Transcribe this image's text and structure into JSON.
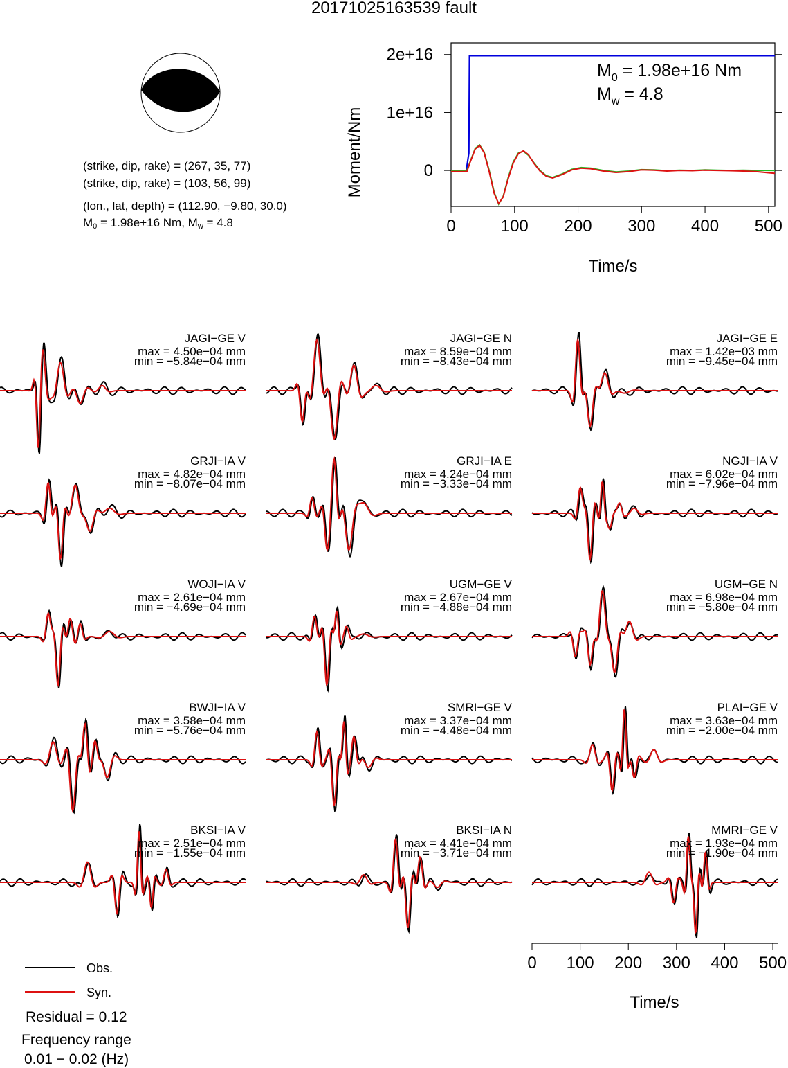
{
  "title": "20171025163539 fault",
  "mechanism": {
    "line1": "(strike, dip, rake) = (267, 35, 77)",
    "line2": "(strike, dip, rake) = (103, 56, 99)",
    "line3": "(lon., lat, depth) = (112.90, −9.80, 30.0)",
    "line4_m": "M",
    "line4_sub": "0",
    "line4_rest": " = 1.98e+16 Nm, M",
    "line4_sub2": "w",
    "line4_end": " = 4.8"
  },
  "chart_data": [
    {
      "type": "line",
      "name": "moment-function",
      "ylabel": "Moment/Nm",
      "xlabel": "Time/s",
      "xlim": [
        0,
        510
      ],
      "ylim": [
        -6200000000000000,
        22000000000000000
      ],
      "xticks": [
        "0",
        "100",
        "200",
        "300",
        "400",
        "500"
      ],
      "yticks": [
        "0",
        "1e+16",
        "2e+16"
      ],
      "annotation_m0": "M",
      "annotation_m0_sub": "0",
      "annotation_m0_val": " = 1.98e+16 Nm",
      "annotation_mw": "M",
      "annotation_mw_sub": "w",
      "annotation_mw_val": " = 4.8",
      "series": [
        {
          "color": "#0000dd",
          "x": [
            0,
            24,
            28,
            29,
            510
          ],
          "y": [
            0,
            0,
            3000000000000000,
            19800000000000000,
            19800000000000000
          ]
        },
        {
          "color": "#22bb22",
          "x": [
            0,
            25,
            30,
            38,
            45,
            52,
            60,
            68,
            75,
            82,
            90,
            98,
            106,
            114,
            122,
            130,
            140,
            150,
            160,
            175,
            190,
            205,
            220,
            240,
            260,
            280,
            300,
            320,
            340,
            360,
            380,
            400,
            420,
            440,
            460,
            480,
            500,
            510
          ],
          "y": [
            0,
            0,
            1500000000000000,
            3800000000000000,
            4400000000000000,
            3200000000000000,
            0,
            -3800000000000000,
            -5800000000000000,
            -4500000000000000,
            -1200000000000000,
            1500000000000000,
            3000000000000000,
            3300000000000000,
            2600000000000000,
            1400000000000000,
            0,
            -900000000000000,
            -1200000000000000,
            -600000000000000,
            200000000000000,
            500000000000000,
            400000000000000,
            0,
            -250000000000000,
            -100000000000000,
            150000000000000,
            100000000000000,
            -50000000000000,
            50000000000000,
            0,
            100000000000000,
            50000000000000,
            0,
            50000000000000,
            0,
            0,
            0
          ]
        },
        {
          "color": "#dd1111",
          "x": [
            0,
            25,
            30,
            38,
            45,
            52,
            60,
            68,
            75,
            82,
            90,
            98,
            106,
            114,
            122,
            130,
            140,
            150,
            160,
            175,
            190,
            205,
            220,
            240,
            260,
            280,
            300,
            320,
            340,
            360,
            380,
            400,
            420,
            440,
            460,
            480,
            500,
            510
          ],
          "y": [
            -200000000000000,
            -200000000000000,
            1400000000000000,
            3700000000000000,
            4300000000000000,
            3100000000000000,
            -200000000000000,
            -4000000000000000,
            -5700000000000000,
            -4600000000000000,
            -1400000000000000,
            1300000000000000,
            2900000000000000,
            3400000000000000,
            2700000000000000,
            1300000000000000,
            -100000000000000,
            -1000000000000000,
            -1300000000000000,
            -700000000000000,
            100000000000000,
            400000000000000,
            300000000000000,
            -100000000000000,
            -350000000000000,
            -200000000000000,
            100000000000000,
            50000000000000,
            -100000000000000,
            0,
            -50000000000000,
            50000000000000,
            0,
            -50000000000000,
            -100000000000000,
            -200000000000000,
            -400000000000000,
            -500000000000000
          ]
        }
      ]
    }
  ],
  "stations": [
    {
      "name": "JAGI−GE V",
      "max": "max = 4.50e−04 mm",
      "min": "min = −5.84e−04 mm"
    },
    {
      "name": "JAGI−GE N",
      "max": "max = 8.59e−04 mm",
      "min": "min = −8.43e−04 mm"
    },
    {
      "name": "JAGI−GE E",
      "max": "max = 1.42e−03 mm",
      "min": "min = −9.45e−04 mm"
    },
    {
      "name": "GRJI−IA V",
      "max": "max = 4.82e−04 mm",
      "min": "min = −8.07e−04 mm"
    },
    {
      "name": "GRJI−IA E",
      "max": "max = 4.24e−04 mm",
      "min": "min = −3.33e−04 mm"
    },
    {
      "name": "NGJI−IA V",
      "max": "max = 6.02e−04 mm",
      "min": "min = −7.96e−04 mm"
    },
    {
      "name": "WOJI−IA V",
      "max": "max = 2.61e−04 mm",
      "min": "min = −4.69e−04 mm"
    },
    {
      "name": "UGM−GE V",
      "max": "max = 2.67e−04 mm",
      "min": "min = −4.88e−04 mm"
    },
    {
      "name": "UGM−GE N",
      "max": "max = 6.98e−04 mm",
      "min": "min = −5.80e−04 mm"
    },
    {
      "name": "BWJI−IA V",
      "max": "max = 3.58e−04 mm",
      "min": "min = −5.76e−04 mm"
    },
    {
      "name": "SMRI−GE V",
      "max": "max = 3.37e−04 mm",
      "min": "min = −4.48e−04 mm"
    },
    {
      "name": "PLAI−GE V",
      "max": "max = 3.63e−04 mm",
      "min": "min = −2.00e−04 mm"
    },
    {
      "name": "BKSI−IA V",
      "max": "max = 2.51e−04 mm",
      "min": "min = −1.55e−04 mm"
    },
    {
      "name": "BKSI−IA N",
      "max": "max = 4.41e−04 mm",
      "min": "min = −3.71e−04 mm"
    },
    {
      "name": "MMRI−GE V",
      "max": "max = 1.93e−04 mm",
      "min": "min = −1.90e−04 mm"
    }
  ],
  "waveform_axis": {
    "xlabel": "Time/s",
    "xticks": [
      "0",
      "100",
      "200",
      "300",
      "400",
      "500"
    ]
  },
  "legend": {
    "obs": "Obs.",
    "syn": "Syn.",
    "obs_color": "#000000",
    "syn_color": "#dd1111"
  },
  "footer": {
    "residual": "Residual = 0.12",
    "freq_label": "Frequency range",
    "freq_value": "0.01 − 0.02 (Hz)"
  }
}
